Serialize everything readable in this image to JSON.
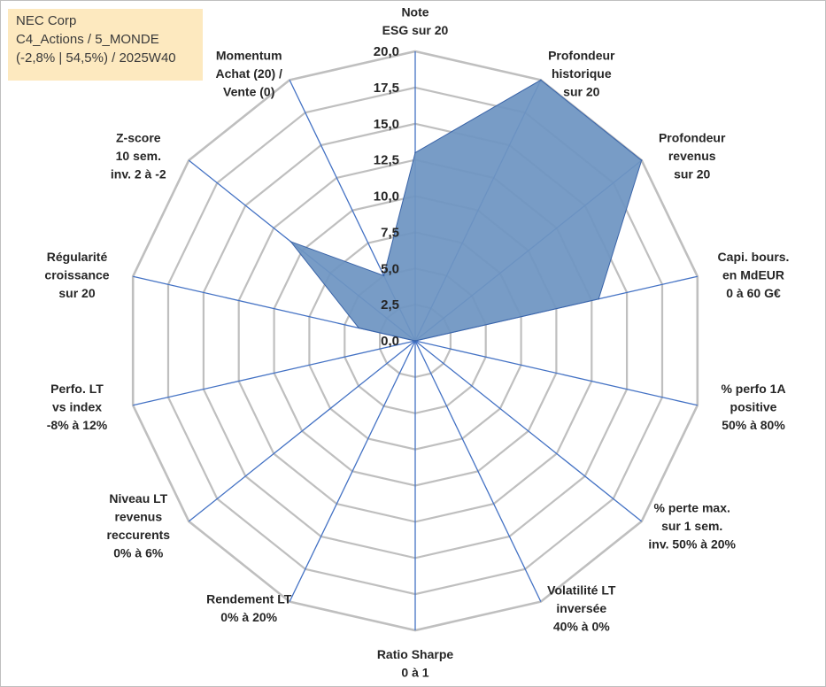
{
  "info": {
    "company": "NEC Corp",
    "portfolio": "C4_Actions / 5_MONDE",
    "stats": "(-2,8% | 54,5%) / 2025W40"
  },
  "chart_data": {
    "type": "radar",
    "title": "",
    "rmin": 0,
    "rmax": 20,
    "ticks": [
      0,
      2.5,
      5,
      7.5,
      10,
      12.5,
      15,
      17.5,
      20
    ],
    "tick_labels": [
      "0,0",
      "2,5",
      "5,0",
      "7,5",
      "10,0",
      "12,5",
      "15,0",
      "17,5",
      "20,0"
    ],
    "fill_color": "#6e95c2",
    "line_color": "#3a64a8",
    "grid_color": "#bfbfbf",
    "spoke_color": "#4472c4",
    "axes": [
      {
        "label": [
          "Note",
          "ESG sur 20"
        ]
      },
      {
        "label": [
          "Profondeur",
          "historique",
          "sur 20"
        ]
      },
      {
        "label": [
          "Profondeur",
          "revenus",
          "sur 20"
        ]
      },
      {
        "label": [
          "Capi. bours.",
          "en MdEUR",
          "0 à 60 G€"
        ]
      },
      {
        "label": [
          "% perfo 1A",
          "positive",
          "50% à 80%"
        ]
      },
      {
        "label": [
          "% perte max.",
          "sur 1 sem.",
          "inv. 50% à 20%"
        ]
      },
      {
        "label": [
          "Volatilité LT",
          "inversée",
          "40% à 0%"
        ]
      },
      {
        "label": [
          "Ratio Sharpe",
          "0 à 1"
        ]
      },
      {
        "label": [
          "Rendement LT",
          "0% à 20%"
        ]
      },
      {
        "label": [
          "Niveau LT",
          "revenus",
          "reccurents",
          "0% à 6%"
        ]
      },
      {
        "label": [
          "Perfo. LT",
          "vs index",
          "-8% à 12%"
        ]
      },
      {
        "label": [
          "Régularité",
          "croissance",
          "sur 20"
        ]
      },
      {
        "label": [
          "Z-score",
          "10 sem.",
          "inv. 2 à -2"
        ]
      },
      {
        "label": [
          "Momentum",
          "Achat (20) /",
          "Vente (0)"
        ]
      }
    ],
    "series": [
      {
        "name": "NEC Corp",
        "values": [
          13,
          20,
          20,
          13,
          0,
          0,
          0,
          0,
          0,
          0,
          0,
          4,
          11,
          5
        ]
      }
    ]
  }
}
